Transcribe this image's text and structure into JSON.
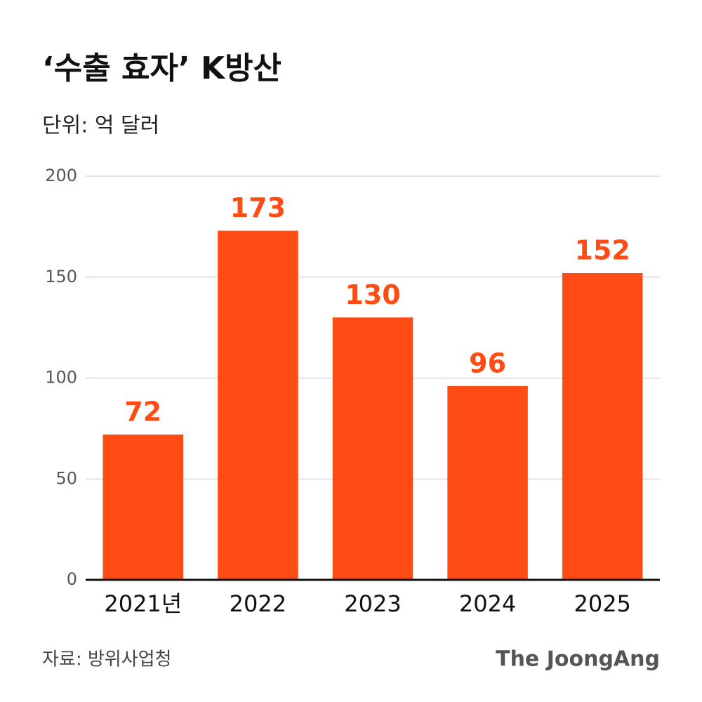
{
  "chart_data": {
    "type": "bar",
    "title": "‘수출 효자’ K방산",
    "subtitle": "단위: 억 달러",
    "categories": [
      "2021년",
      "2022",
      "2023",
      "2024",
      "2025"
    ],
    "values": [
      72,
      173,
      130,
      96,
      152
    ],
    "color": "#ff4b14",
    "ylim": [
      0,
      200
    ],
    "yticks": [
      0,
      50,
      100,
      150,
      200
    ],
    "grid": true,
    "source": "자료: 방위사업청",
    "brand": "The JoongAng"
  }
}
